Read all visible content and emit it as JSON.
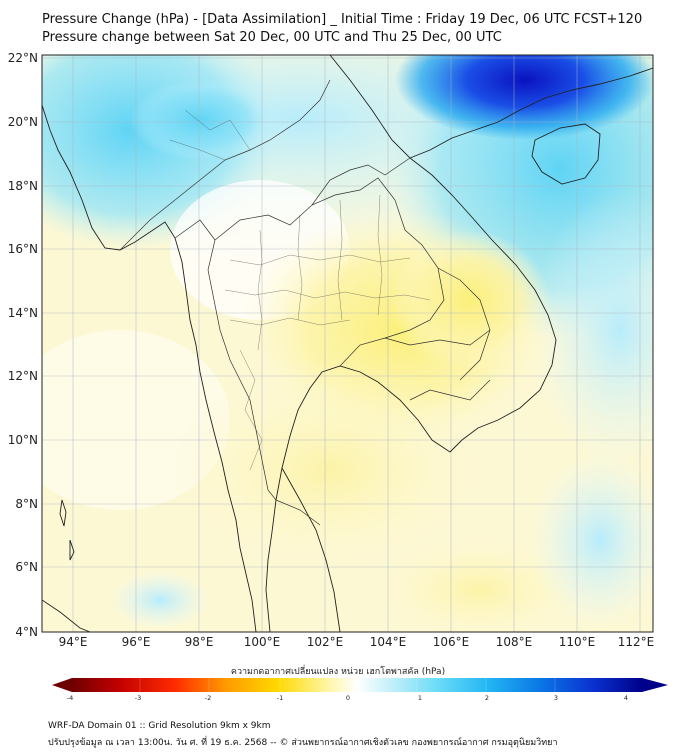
{
  "title": {
    "line1": "Pressure Change (hPa) - [Data Assimilation] _ Initial Time : Friday 19 Dec, 06 UTC FCST+120",
    "line2": "Pressure change between Sat 20 Dec, 00 UTC and Thu 25 Dec, 00 UTC"
  },
  "map": {
    "lat_labels": [
      "22°N",
      "20°N",
      "18°N",
      "16°N",
      "14°N",
      "12°N",
      "10°N",
      "8°N",
      "6°N",
      "4°N"
    ],
    "lon_labels": [
      "94°E",
      "96°E",
      "98°E",
      "100°E",
      "102°E",
      "104°E",
      "106°E",
      "108°E",
      "110°E",
      "112°E"
    ],
    "lat_range": [
      4,
      22
    ],
    "lon_range": [
      93,
      112.5
    ]
  },
  "colorbar": {
    "title": "ความกดอากาศเปลี่ยนแปลง หน่วย เฮกโตพาสคัล (hPa)",
    "labels": [
      "-4",
      "-3",
      "-2",
      "-1",
      "0",
      "1",
      "2",
      "3",
      "4"
    ],
    "range": [
      -4.2,
      4.2
    ]
  },
  "footer": {
    "line1": "WRF-DA Domain 01 :: Grid Resolution 9km x 9km",
    "line2": "ปรับปรุงข้อมูล ณ เวลา 13:00น. วัน ศ. ที่ 19 ธ.ค. 2568 -- © ส่วนพยากรณ์อากาศเชิงตัวเลข กองพยากรณ์อากาศ กรมอุตุนิยมวิทยา"
  },
  "colors": {
    "strong_fall": "#7a0000",
    "fall": "#ff2a00",
    "slight_fall": "#fff27a",
    "neutral": "#ffffff",
    "rise": "#33c8f0",
    "strong_rise": "#0018c8"
  }
}
